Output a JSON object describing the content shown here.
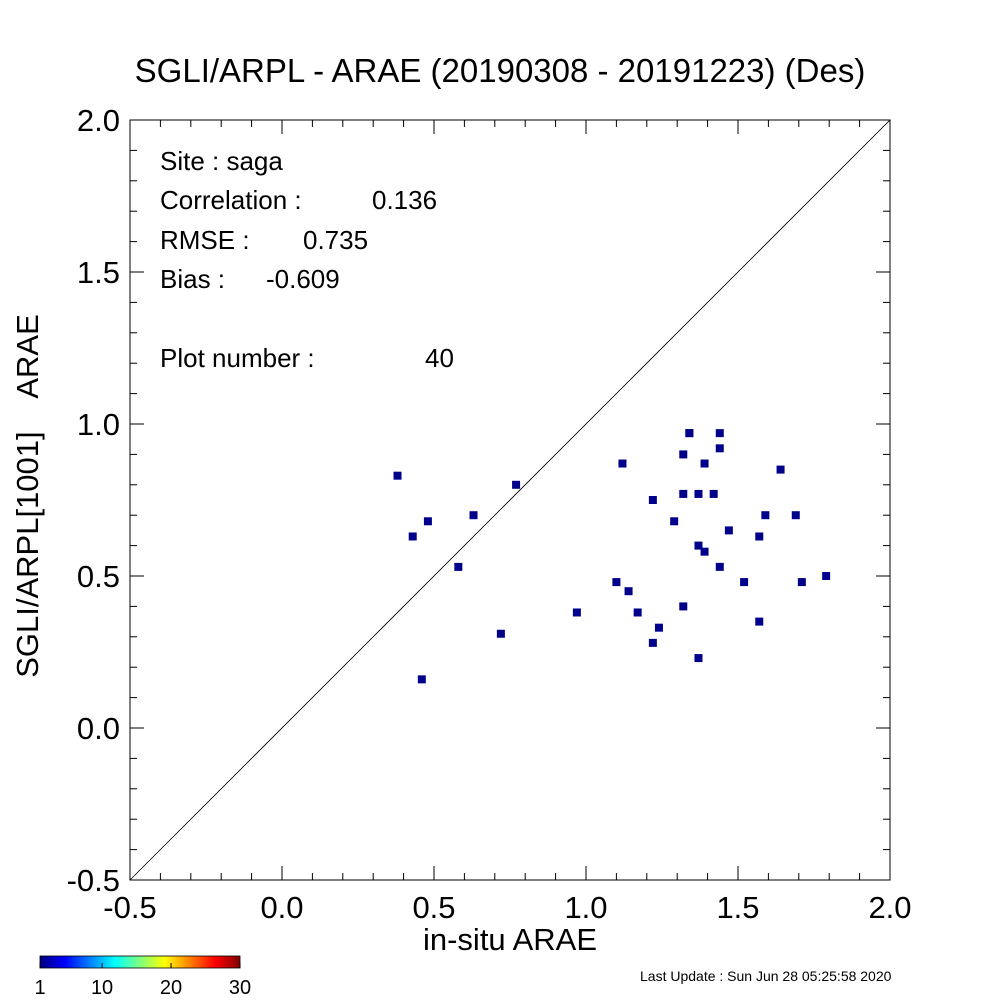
{
  "chart_data": {
    "type": "scatter",
    "title": "SGLI/ARPL - ARAE (20190308 - 20191223) (Des)",
    "xlabel": "in-situ ARAE",
    "ylabel": "SGLI/ARPL[1001]    ARAE",
    "xlim": [
      -0.5,
      2.0
    ],
    "ylim": [
      -0.5,
      2.0
    ],
    "x_ticks": [
      "-0.5",
      "0.0",
      "0.5",
      "1.0",
      "1.5",
      "2.0"
    ],
    "y_ticks": [
      "-0.5",
      "0.0",
      "0.5",
      "1.0",
      "1.5",
      "2.0"
    ],
    "one_to_one_line": true,
    "grid": false,
    "marker_color": "#00008b",
    "points": [
      {
        "x": 0.38,
        "y": 0.83
      },
      {
        "x": 0.43,
        "y": 0.63
      },
      {
        "x": 0.46,
        "y": 0.16
      },
      {
        "x": 0.48,
        "y": 0.68
      },
      {
        "x": 0.58,
        "y": 0.53
      },
      {
        "x": 0.63,
        "y": 0.7
      },
      {
        "x": 0.72,
        "y": 0.31
      },
      {
        "x": 0.77,
        "y": 0.8
      },
      {
        "x": 0.97,
        "y": 0.38
      },
      {
        "x": 1.1,
        "y": 0.48
      },
      {
        "x": 1.12,
        "y": 0.87
      },
      {
        "x": 1.14,
        "y": 0.45
      },
      {
        "x": 1.17,
        "y": 0.38
      },
      {
        "x": 1.22,
        "y": 0.75
      },
      {
        "x": 1.22,
        "y": 0.28
      },
      {
        "x": 1.24,
        "y": 0.33
      },
      {
        "x": 1.29,
        "y": 0.68
      },
      {
        "x": 1.32,
        "y": 0.9
      },
      {
        "x": 1.32,
        "y": 0.77
      },
      {
        "x": 1.32,
        "y": 0.4
      },
      {
        "x": 1.34,
        "y": 0.97
      },
      {
        "x": 1.37,
        "y": 0.77
      },
      {
        "x": 1.37,
        "y": 0.6
      },
      {
        "x": 1.37,
        "y": 0.23
      },
      {
        "x": 1.39,
        "y": 0.87
      },
      {
        "x": 1.39,
        "y": 0.58
      },
      {
        "x": 1.42,
        "y": 0.77
      },
      {
        "x": 1.44,
        "y": 0.97
      },
      {
        "x": 1.44,
        "y": 0.92
      },
      {
        "x": 1.44,
        "y": 0.53
      },
      {
        "x": 1.47,
        "y": 0.65
      },
      {
        "x": 1.52,
        "y": 0.48
      },
      {
        "x": 1.57,
        "y": 0.63
      },
      {
        "x": 1.57,
        "y": 0.35
      },
      {
        "x": 1.59,
        "y": 0.7
      },
      {
        "x": 1.64,
        "y": 0.85
      },
      {
        "x": 1.69,
        "y": 0.7
      },
      {
        "x": 1.71,
        "y": 0.48
      },
      {
        "x": 1.79,
        "y": 0.5
      },
      {
        "x": 1.34,
        "y": 0.97
      }
    ],
    "colorbar": {
      "tick_labels": [
        "1",
        "10",
        "20",
        "30"
      ],
      "range": [
        1,
        30
      ],
      "colors": [
        "#00007f",
        "#0000ff",
        "#007fff",
        "#00ffff",
        "#7fff7f",
        "#ffff00",
        "#ff7f00",
        "#ff0000",
        "#7f0000"
      ]
    }
  },
  "stats": {
    "site": "Site : saga",
    "correlation_label": "Correlation :",
    "correlation_value": "0.136",
    "rmse_label": "RMSE :",
    "rmse_value": "0.735",
    "bias_label": "Bias :",
    "bias_value": "-0.609",
    "plot_number_label": "Plot number :",
    "plot_number_value": "40"
  },
  "footer": "Last Update : Sun Jun 28 05:25:58 2020"
}
